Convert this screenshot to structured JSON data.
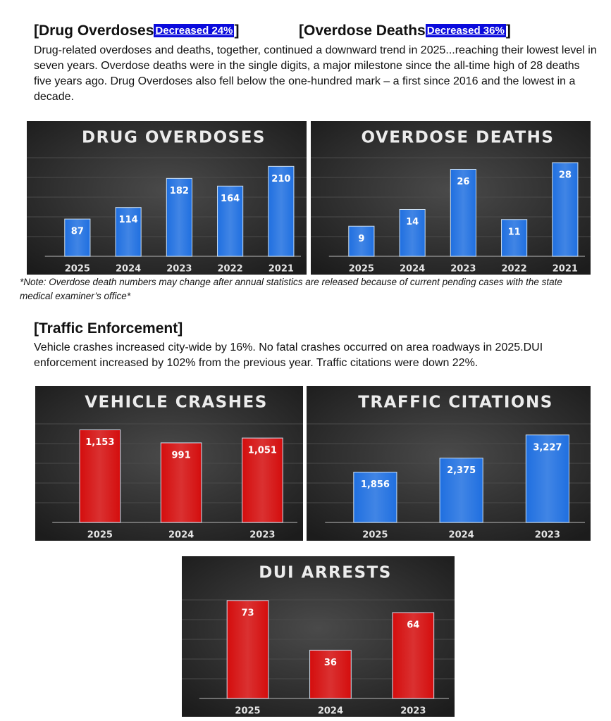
{
  "header": {
    "items": [
      {
        "title": "[Drug Overdoses",
        "badge": "Decreased 24%",
        "close": "]"
      },
      {
        "title": "[Overdose Deaths",
        "badge": "Decreased 36%",
        "close": "]"
      }
    ]
  },
  "intro": "Drug-related overdoses and deaths, together, continued a downward trend in 2025...reaching their lowest level in seven years. Overdose deaths were in the single digits, a major milestone since the all-time high of 28 deaths five years ago. Drug Overdoses also fell below the one-hundred mark – a first since 2016 and the lowest in a decade.",
  "note": "*Note: Overdose death numbers may change after annual statistics are released because of current pending cases with the state medical examiner’s office*",
  "section": {
    "title": "[Traffic Enforcement]",
    "text": "Vehicle crashes increased city-wide by 16%. No fatal crashes occurred on area roadways in 2025.DUI enforcement increased by 102% from the previous year. Traffic citations were down 22%."
  },
  "chart_data": [
    {
      "type": "bar",
      "title": "DRUG OVERDOSES",
      "categories": [
        "2025",
        "2024",
        "2023",
        "2022",
        "2021"
      ],
      "values": [
        87,
        114,
        182,
        164,
        210
      ],
      "color": "#1f6fe0",
      "ylim": [
        0,
        250
      ]
    },
    {
      "type": "bar",
      "title": "OVERDOSE DEATHS",
      "categories": [
        "2025",
        "2024",
        "2023",
        "2022",
        "2021"
      ],
      "values": [
        9,
        14,
        26,
        11,
        28
      ],
      "color": "#1f6fe0",
      "ylim": [
        0,
        32
      ]
    },
    {
      "type": "bar",
      "title": "VEHICLE CRASHES",
      "categories": [
        "2025",
        "2024",
        "2023"
      ],
      "values": [
        1153,
        991,
        1051
      ],
      "value_labels": [
        "1,153",
        "991",
        "1,051"
      ],
      "color": "#d40d0d",
      "ylim": [
        0,
        1350
      ]
    },
    {
      "type": "bar",
      "title": "TRAFFIC CITATIONS",
      "categories": [
        "2025",
        "2024",
        "2023"
      ],
      "values": [
        1856,
        2375,
        3227
      ],
      "value_labels": [
        "1,856",
        "2,375",
        "3,227"
      ],
      "color": "#1f6fe0",
      "ylim": [
        0,
        4000
      ]
    },
    {
      "type": "bar",
      "title": "DUI ARRESTS",
      "categories": [
        "2025",
        "2024",
        "2023"
      ],
      "values": [
        73,
        36,
        64
      ],
      "color": "#d40d0d",
      "ylim": [
        0,
        85
      ]
    }
  ]
}
